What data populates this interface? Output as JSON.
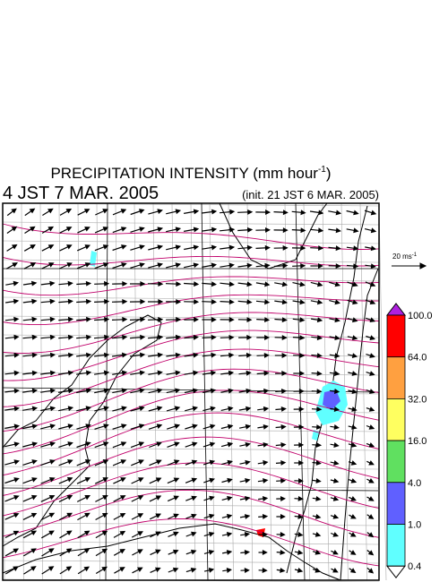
{
  "header": {
    "title_main": "PRECIPITATION INTENSITY (mm hour",
    "title_sup": "-1",
    "title_end": ")",
    "valid_time": "4 JST 7 MAR. 2005",
    "init_time": "(init. 21 JST 6 MAR. 2005)"
  },
  "wind_legend": {
    "label": "20 ms",
    "label_sup": "-1"
  },
  "colorbar": {
    "labels": [
      "100.0",
      "64.0",
      "32.0",
      "16.0",
      "4.0",
      "1.0",
      "0.4"
    ],
    "over_color": "#b020e0",
    "colors": [
      "#ff0000",
      "#ffa040",
      "#ffff60",
      "#60e060",
      "#6060ff",
      "#60ffff"
    ],
    "under_color": "#ffffff"
  }
}
